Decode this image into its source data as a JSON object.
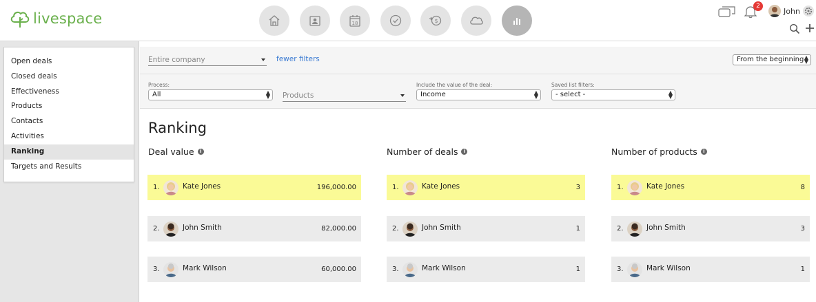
{
  "brand": {
    "name": "livespace",
    "color": "#6ab04c"
  },
  "nav": [
    {
      "icon": "home-icon"
    },
    {
      "icon": "contacts-icon"
    },
    {
      "icon": "calendar-icon",
      "text": "18"
    },
    {
      "icon": "check-icon"
    },
    {
      "icon": "deals-icon"
    },
    {
      "icon": "cloud-icon"
    },
    {
      "icon": "reports-icon",
      "active": true
    }
  ],
  "user": {
    "name": "John",
    "notifications": "2"
  },
  "sidebar": {
    "items": [
      {
        "label": "Open deals"
      },
      {
        "label": "Closed deals"
      },
      {
        "label": "Effectiveness"
      },
      {
        "label": "Products"
      },
      {
        "label": "Contacts"
      },
      {
        "label": "Activities"
      },
      {
        "label": "Ranking",
        "active": true
      },
      {
        "label": "Targets and Results"
      }
    ]
  },
  "filters": {
    "company": "Entire company",
    "fewer_filters": "fewer filters",
    "period": "From the beginning",
    "process_label": "Process:",
    "process_value": "All",
    "products_placeholder": "Products",
    "deal_value_label": "Include the value of the deal:",
    "deal_value_value": "Income",
    "saved_label": "Saved list filters:",
    "saved_value": "- select -"
  },
  "page": {
    "title": "Ranking"
  },
  "rankings": [
    {
      "title": "Deal value",
      "rows": [
        {
          "rank": "1.",
          "name": "Kate Jones",
          "value": "196,000.00"
        },
        {
          "rank": "2.",
          "name": "John Smith",
          "value": "82,000.00"
        },
        {
          "rank": "3.",
          "name": "Mark Wilson",
          "value": "60,000.00"
        }
      ]
    },
    {
      "title": "Number of deals",
      "rows": [
        {
          "rank": "1.",
          "name": "Kate Jones",
          "value": "3"
        },
        {
          "rank": "2.",
          "name": "John Smith",
          "value": "1"
        },
        {
          "rank": "3.",
          "name": "Mark Wilson",
          "value": "1"
        }
      ]
    },
    {
      "title": "Number of products",
      "rows": [
        {
          "rank": "1.",
          "name": "Kate Jones",
          "value": "8"
        },
        {
          "rank": "2.",
          "name": "John Smith",
          "value": "3"
        },
        {
          "rank": "3.",
          "name": "Mark Wilson",
          "value": "1"
        }
      ]
    }
  ],
  "colors": {
    "highlight": "#fafa96",
    "row": "#ebebeb",
    "link": "#3b7bd3"
  }
}
